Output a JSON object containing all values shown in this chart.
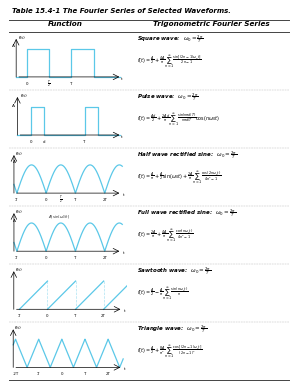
{
  "title": "Table 15.4-1 The Fourier Series of Selected Waveforms.",
  "col1_header": "Function",
  "col2_header": "Trigonometric Fourier Series",
  "bg_color": "#ffffff",
  "rows": [
    {
      "wave_name": "Square wave:",
      "wave_param": "$\\omega_0 = \\frac{2\\pi}{T}$",
      "formula_line1": "$f(t) = \\frac{A}{2} + \\frac{4A}{\\pi}\\sum_{n=1}^{\\infty}\\frac{\\sin[(2n-1)\\omega_0 t]}{2n-1}$",
      "wave_type": "square",
      "wave_params": {
        "A": 1,
        "d": 0.5
      }
    },
    {
      "wave_name": "Pulse wave:",
      "wave_param": "$\\omega_0 = \\frac{2\\pi}{T}$",
      "formula_line1": "$f(t) = \\frac{Ad}{2} + \\frac{2Ad}{\\pi}\\sum_{n=1}^{\\infty}\\frac{\\sin(n\\pi d/T)}{n\\pi d/T}\\cos(n\\omega_0 t)$",
      "wave_type": "pulse",
      "wave_params": {
        "A": 1,
        "d": 0.25
      }
    },
    {
      "wave_name": "Half wave rectified sine:",
      "wave_param": "$\\omega_0 = \\frac{2\\pi}{T}$",
      "formula_line1": "$f(t) = \\frac{A}{\\pi} + \\frac{A}{2}\\sin(\\omega_0 t) + \\frac{2A}{\\pi}\\sum_{n=1}^{\\infty}\\frac{\\cos(2n\\omega_0 t)}{4n^2-1}$",
      "wave_type": "half_rect",
      "wave_params": {
        "A": 1
      }
    },
    {
      "wave_name": "Full wave rectified sine:",
      "wave_param": "$\\omega_0 = \\frac{2\\pi}{T}$",
      "formula_line1": "$f(t) = \\frac{2A}{\\pi} + \\frac{4A}{\\pi}\\sum_{n=1}^{\\infty}\\frac{\\cos(n\\omega_0 t)}{4n^2-1}$",
      "wave_type": "full_rect",
      "wave_params": {
        "A": 1
      }
    },
    {
      "wave_name": "Sawtooth wave:",
      "wave_param": "$\\omega_0 = \\frac{2\\pi}{T}$",
      "formula_line1": "$f(t) = \\frac{A}{2} - \\frac{A}{\\pi}\\sum_{n=1}^{\\infty}\\frac{\\sin(n\\omega_0 t)}{n}$",
      "wave_type": "sawtooth",
      "wave_params": {
        "A": 1
      }
    },
    {
      "wave_name": "Triangle wave:",
      "wave_param": "$\\omega_0 = \\frac{2\\pi}{T}$",
      "formula_line1": "$f(t) = \\frac{A}{2} + \\frac{8A}{\\pi^2}\\sum_{n=1}^{\\infty}\\frac{\\cos[(2n-1)\\omega_0 t]}{(2n-1)^2}$",
      "wave_type": "triangle",
      "wave_params": {
        "A": 1
      }
    }
  ],
  "wave_color": "#5bc8e8",
  "text_color": "#000000"
}
